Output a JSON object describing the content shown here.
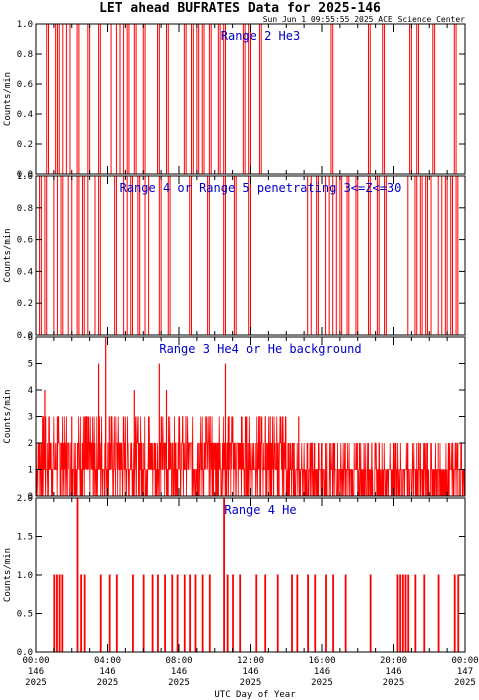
{
  "title": "LET ahead BUFRATES Data for 2025-146",
  "timestamp": "Sun Jun  1 09:55:55 2025 ACE Science Center",
  "xlabel": "UTC Day of Year",
  "x_ticks": [
    {
      "time": "00:00",
      "doy": "146",
      "year": "2025"
    },
    {
      "time": "04:00",
      "doy": "146",
      "year": "2025"
    },
    {
      "time": "08:00",
      "doy": "146",
      "year": "2025"
    },
    {
      "time": "12:00",
      "doy": "146",
      "year": "2025"
    },
    {
      "time": "16:00",
      "doy": "146",
      "year": "2025"
    },
    {
      "time": "20:00",
      "doy": "146",
      "year": "2025"
    },
    {
      "time": "00:00",
      "doy": "147",
      "year": "2025"
    }
  ],
  "colors": {
    "series": "#ff0000",
    "panel_title": "#0000cc",
    "axis": "#000000"
  },
  "chart_data": [
    {
      "type": "line",
      "title": "Range 2 He3",
      "ylabel": "Counts/min",
      "xlim": [
        0,
        24
      ],
      "ylim": [
        0,
        1
      ],
      "yticks": [
        "0.0",
        "0.2",
        "0.4",
        "0.6",
        "0.8",
        "1.0"
      ],
      "series": [
        {
          "values": [
            [
              0.6,
              0.7
            ],
            [
              1.1,
              1.2
            ],
            [
              1.3,
              1.5
            ],
            [
              1.7,
              1.9
            ],
            [
              2.3,
              2.4
            ],
            [
              2.9,
              3.0
            ],
            [
              3.5,
              3.6
            ],
            [
              4.2,
              4.5
            ],
            [
              4.7,
              4.9
            ],
            [
              5.1,
              5.2
            ],
            [
              5.5,
              5.6
            ],
            [
              6.0,
              6.1
            ],
            [
              6.8,
              6.9
            ],
            [
              7.3,
              7.4
            ],
            [
              8.3,
              8.4
            ],
            [
              8.7,
              8.8
            ],
            [
              9.0,
              9.1
            ],
            [
              9.3,
              9.4
            ],
            [
              9.7,
              9.8
            ],
            [
              10.2,
              10.3
            ],
            [
              10.5,
              10.6
            ],
            [
              11.6,
              11.7
            ],
            [
              11.9,
              12.0
            ],
            [
              12.5,
              12.6
            ],
            [
              16.5,
              16.6
            ],
            [
              18.6,
              18.7
            ],
            [
              19.4,
              19.5
            ],
            [
              20.9,
              21.0
            ],
            [
              21.3,
              21.4
            ],
            [
              22.2,
              22.3
            ],
            [
              23.4,
              23.5
            ]
          ]
        }
      ]
    },
    {
      "type": "line",
      "title": "Range 4 or Range 5 penetrating 3<=Z<=30",
      "ylabel": "Counts/min",
      "xlim": [
        0,
        24
      ],
      "ylim": [
        0,
        1
      ],
      "yticks": [
        "0.0",
        "0.2",
        "0.4",
        "0.6",
        "0.8",
        "1.0"
      ],
      "series": [
        {
          "values": [
            [
              0.2,
              0.3
            ],
            [
              0.5,
              0.6
            ],
            [
              1.0,
              1.2
            ],
            [
              1.4,
              1.5
            ],
            [
              1.8,
              2.0
            ],
            [
              2.3,
              2.4
            ],
            [
              2.6,
              2.7
            ],
            [
              2.9,
              3.3
            ],
            [
              3.5,
              3.6
            ],
            [
              4.4,
              4.5
            ],
            [
              4.9,
              5.1
            ],
            [
              5.3,
              5.4
            ],
            [
              5.7,
              5.8
            ],
            [
              6.1,
              6.3
            ],
            [
              6.9,
              7.0
            ],
            [
              7.4,
              7.5
            ],
            [
              8.6,
              8.7
            ],
            [
              9.6,
              9.7
            ],
            [
              10.5,
              10.6
            ],
            [
              11.1,
              11.2
            ],
            [
              11.9,
              12.0
            ],
            [
              15.2,
              15.4
            ],
            [
              15.7,
              15.8
            ],
            [
              16.2,
              16.4
            ],
            [
              16.6,
              16.8
            ],
            [
              17.0,
              17.1
            ],
            [
              17.4,
              17.5
            ],
            [
              17.9,
              18.0
            ],
            [
              18.6,
              18.7
            ],
            [
              19.1,
              19.2
            ],
            [
              19.5,
              19.6
            ],
            [
              20.8,
              21.2
            ],
            [
              21.3,
              21.5
            ],
            [
              21.6,
              21.8
            ],
            [
              21.9,
              22.1
            ],
            [
              22.5,
              22.7
            ],
            [
              22.9,
              23.0
            ],
            [
              23.2,
              23.3
            ],
            [
              23.5,
              23.6
            ]
          ]
        }
      ]
    },
    {
      "type": "line",
      "title": "Range 3 He4 or He background",
      "ylabel": "Counts/min",
      "xlim": [
        0,
        24
      ],
      "ylim": [
        0,
        6
      ],
      "yticks": [
        "0",
        "1",
        "2",
        "3",
        "4",
        "5",
        "6"
      ],
      "spikes": [
        [
          0.5,
          4
        ],
        [
          1.2,
          3
        ],
        [
          2.0,
          3
        ],
        [
          2.9,
          3
        ],
        [
          3.5,
          5
        ],
        [
          3.9,
          6
        ],
        [
          4.1,
          3
        ],
        [
          5.5,
          4
        ],
        [
          6.3,
          3
        ],
        [
          6.9,
          5
        ],
        [
          7.3,
          4
        ],
        [
          8.0,
          3
        ],
        [
          9.5,
          3
        ],
        [
          10.6,
          5
        ],
        [
          10.8,
          3
        ],
        [
          11.5,
          3
        ],
        [
          13.1,
          3
        ],
        [
          14.1,
          2
        ],
        [
          14.7,
          3
        ],
        [
          15.2,
          2
        ],
        [
          16.0,
          2
        ],
        [
          16.7,
          2
        ],
        [
          18.1,
          2
        ],
        [
          21.5,
          2
        ],
        [
          22.1,
          2
        ],
        [
          23.8,
          2
        ]
      ],
      "drops": [
        [
          0.3,
          0
        ],
        [
          1.4,
          0
        ],
        [
          2.6,
          0
        ],
        [
          3.2,
          0
        ],
        [
          4.7,
          0
        ],
        [
          6.0,
          0
        ],
        [
          7.8,
          0
        ],
        [
          9.1,
          0
        ],
        [
          10.2,
          0
        ],
        [
          11.7,
          0
        ],
        [
          12.9,
          0
        ],
        [
          13.6,
          0
        ],
        [
          14.4,
          0
        ],
        [
          15.6,
          0
        ],
        [
          16.2,
          0
        ],
        [
          17.3,
          0
        ],
        [
          18.6,
          0
        ],
        [
          19.2,
          0
        ],
        [
          20.0,
          0
        ],
        [
          20.8,
          0
        ],
        [
          21.3,
          0
        ],
        [
          21.9,
          0
        ],
        [
          22.5,
          0
        ],
        [
          23.1,
          0
        ],
        [
          23.6,
          0
        ]
      ]
    },
    {
      "type": "line",
      "title": "Range 4 He",
      "ylabel": "Counts/min",
      "xlim": [
        0,
        24
      ],
      "ylim": [
        0,
        2
      ],
      "yticks": [
        "0.0",
        "0.5",
        "1.0",
        "1.5",
        "2.0"
      ],
      "series": [
        {
          "values": [
            [
              1.0,
              1
            ],
            [
              1.15,
              1
            ],
            [
              1.3,
              1
            ],
            [
              1.45,
              1
            ],
            [
              2.3,
              2
            ],
            [
              2.5,
              1
            ],
            [
              2.7,
              1
            ],
            [
              3.6,
              1
            ],
            [
              4.1,
              1
            ],
            [
              4.5,
              1
            ],
            [
              5.4,
              1
            ],
            [
              6.0,
              1
            ],
            [
              6.5,
              1
            ],
            [
              6.8,
              1
            ],
            [
              7.2,
              1
            ],
            [
              7.6,
              1
            ],
            [
              7.9,
              1
            ],
            [
              8.3,
              1
            ],
            [
              8.6,
              1
            ],
            [
              8.9,
              1
            ],
            [
              9.3,
              1
            ],
            [
              9.7,
              1
            ],
            [
              10.5,
              2
            ],
            [
              10.7,
              1
            ],
            [
              11.0,
              1
            ],
            [
              11.4,
              1
            ],
            [
              12.3,
              1
            ],
            [
              12.8,
              1
            ],
            [
              13.5,
              1
            ],
            [
              14.3,
              1
            ],
            [
              14.6,
              1
            ],
            [
              15.2,
              1
            ],
            [
              15.6,
              1
            ],
            [
              16.2,
              1
            ],
            [
              16.6,
              1
            ],
            [
              17.3,
              1
            ],
            [
              18.7,
              1
            ],
            [
              20.2,
              1
            ],
            [
              20.35,
              1
            ],
            [
              20.5,
              1
            ],
            [
              20.65,
              1
            ],
            [
              20.8,
              1
            ],
            [
              21.2,
              1
            ],
            [
              21.7,
              1
            ],
            [
              22.5,
              1
            ],
            [
              23.4,
              1
            ],
            [
              23.6,
              1
            ]
          ]
        }
      ]
    }
  ]
}
